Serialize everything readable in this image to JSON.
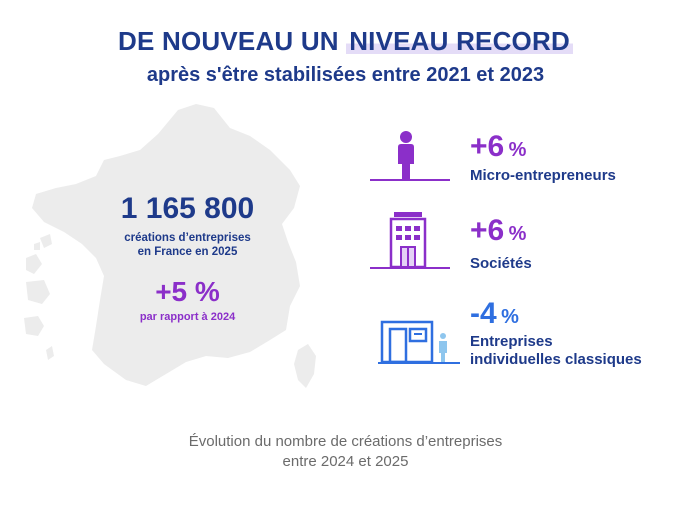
{
  "header": {
    "title_part1": "DE NOUVEAU UN ",
    "title_highlight": "NIVEAU RECORD",
    "subtitle": "après s'être stabilisées entre 2021 et 2023"
  },
  "summary": {
    "total": "1 165 800",
    "total_caption_line1": "créations d’entreprises",
    "total_caption_line2": "en France en 2025",
    "change": "+5 %",
    "change_caption": "par rapport à 2024"
  },
  "categories": [
    {
      "value": "+6",
      "unit": "%",
      "label_line1": "Micro-entrepreneurs",
      "label_line2": "",
      "icon": "person-icon",
      "color": "#8b2fc9"
    },
    {
      "value": "+6",
      "unit": "%",
      "label_line1": "Sociétés",
      "label_line2": "",
      "icon": "office-building-icon",
      "color": "#8b2fc9"
    },
    {
      "value": "-4",
      "unit": "%",
      "label_line1": "Entreprises",
      "label_line2": "individuelles classiques",
      "icon": "shop-icon",
      "color": "#2f6fe0"
    }
  ],
  "footer": {
    "line1": "Évolution du nombre de créations d’entreprises",
    "line2": "entre 2024 et 2025"
  },
  "colors": {
    "navy": "#1e3a8a",
    "purple": "#8b2fc9",
    "blue": "#2f6fe0",
    "map_grey": "#ececec",
    "highlight": "#e4dcf7"
  }
}
